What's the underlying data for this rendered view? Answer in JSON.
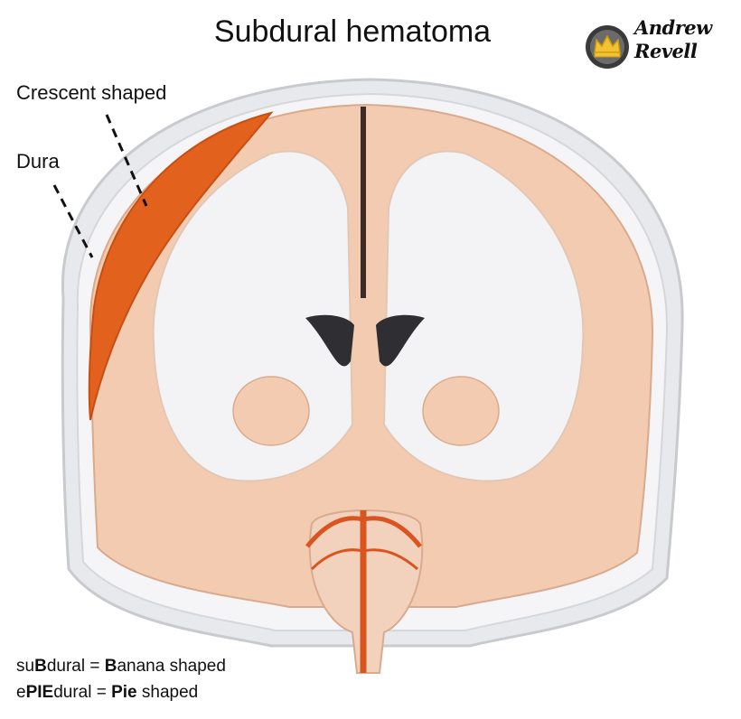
{
  "title": "Subdural hematoma",
  "labels": {
    "crescent": "Crescent shaped",
    "dura": "Dura"
  },
  "logo": {
    "line1": "Andrew",
    "line2": "Revell"
  },
  "mnemonics": [
    {
      "parts": [
        {
          "t": "su",
          "b": false
        },
        {
          "t": "B",
          "b": true
        },
        {
          "t": "dural = ",
          "b": false
        },
        {
          "t": "B",
          "b": true
        },
        {
          "t": "anana shaped",
          "b": false
        }
      ]
    },
    {
      "parts": [
        {
          "t": "e",
          "b": false
        },
        {
          "t": "PIE",
          "b": true
        },
        {
          "t": "dural = ",
          "b": false
        },
        {
          "t": "Pie",
          "b": true
        },
        {
          "t": " shaped",
          "b": false
        }
      ]
    }
  ],
  "colors": {
    "hematoma": "#e2611c",
    "skull": "#e9eaec",
    "grey_matter": "#f4cdb3",
    "white_matter": "#f2f2f4",
    "vessels": "#d9541f"
  }
}
